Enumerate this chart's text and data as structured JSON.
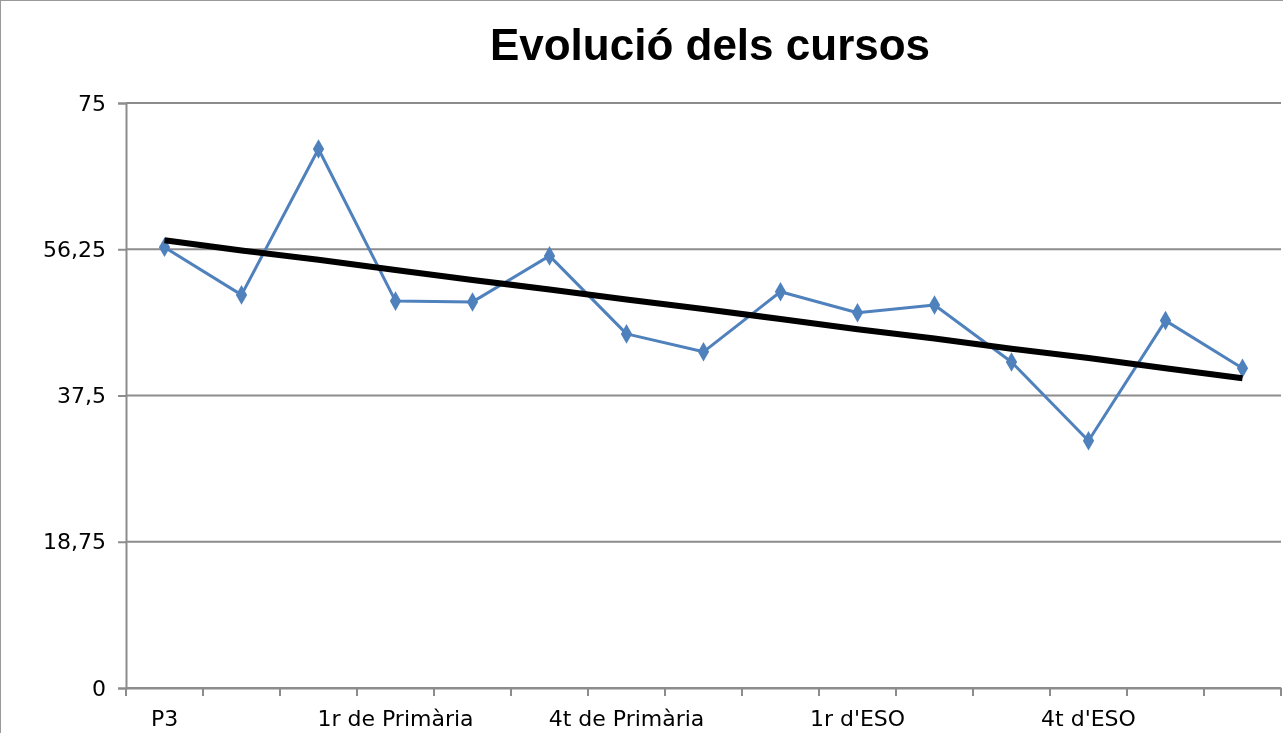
{
  "chart_data": {
    "type": "line",
    "title": "Evolució dels cursos",
    "categories": [
      "P3",
      null,
      null,
      "1r de Primària",
      null,
      null,
      "4t de Primària",
      null,
      null,
      "1r d'ESO",
      null,
      null,
      "4t d'ESO",
      null,
      null
    ],
    "series": [
      {
        "color": "#4f81bd",
        "marker": "diamond",
        "values": [
          56.5,
          50.4,
          69.1,
          49.6,
          49.5,
          55.4,
          45.4,
          43.1,
          50.8,
          48.1,
          49.1,
          41.8,
          31.7,
          47.1,
          41.0
        ]
      },
      {
        "type": "line",
        "color": "#000000",
        "marker": "none",
        "values": [
          57.4,
          56.1,
          54.9,
          53.6,
          52.3,
          51.1,
          49.8,
          48.6,
          47.3,
          46.0,
          44.8,
          43.5,
          42.3,
          41.0,
          39.7
        ]
      }
    ],
    "ylim": [
      0,
      75
    ],
    "yticks": [
      {
        "value": 0,
        "label": "0"
      },
      {
        "value": 18.75,
        "label": "18,75"
      },
      {
        "value": 37.5,
        "label": "37,5"
      },
      {
        "value": 56.25,
        "label": "56,25"
      },
      {
        "value": 75,
        "label": "75"
      }
    ],
    "grid": "y"
  }
}
